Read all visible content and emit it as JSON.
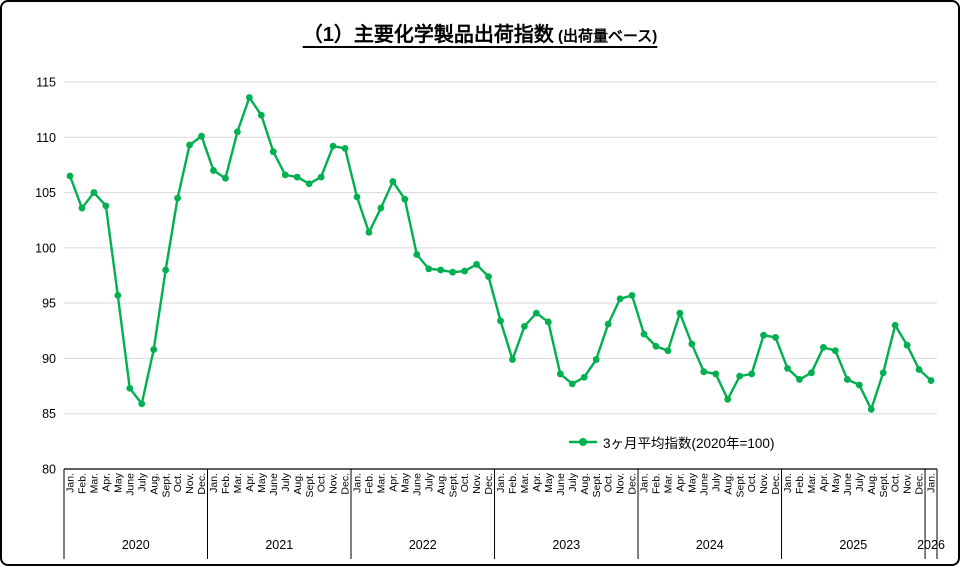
{
  "card": {
    "title_main": "（1）主要化学製品出荷指数",
    "title_sub": " (出荷量ベース)"
  },
  "chart_data": {
    "type": "line",
    "title": "（1）主要化学製品出荷指数 (出荷量ベース)",
    "legend": "3ヶ月平均指数(2020年=100)",
    "ylim": [
      80,
      115
    ],
    "y_tick_step": 5,
    "y_tick_labels": [
      "80",
      "85",
      "90",
      "95",
      "100",
      "105",
      "110",
      "115"
    ],
    "grid": "on",
    "legend_position": "inside-bottom-center",
    "month_labels": [
      "Jan.",
      "Feb.",
      "Mar.",
      "Apr.",
      "May",
      "June",
      "July",
      "Aug.",
      "Sept.",
      "Oct.",
      "Nov.",
      "Dec."
    ],
    "year_groups": [
      {
        "year": "2020",
        "count": 12
      },
      {
        "year": "2021",
        "count": 12
      },
      {
        "year": "2022",
        "count": 12
      },
      {
        "year": "2023",
        "count": 12
      },
      {
        "year": "2024",
        "count": 12
      },
      {
        "year": "2025",
        "count": 12
      },
      {
        "year": "2026",
        "count": 1
      }
    ],
    "series": [
      {
        "name": "3ヶ月平均指数(2020年=100)",
        "color": "#00B050",
        "values": [
          106.5,
          103.6,
          105.0,
          103.8,
          95.7,
          87.3,
          85.9,
          90.8,
          98.0,
          104.5,
          109.3,
          110.1,
          107.0,
          106.3,
          110.5,
          113.6,
          112.0,
          108.7,
          106.6,
          106.4,
          105.8,
          106.4,
          109.2,
          109.0,
          104.6,
          101.4,
          103.6,
          106.0,
          104.4,
          99.4,
          98.1,
          98.0,
          97.8,
          97.9,
          98.5,
          97.4,
          93.4,
          89.9,
          92.9,
          94.1,
          93.3,
          88.6,
          87.7,
          88.3,
          89.9,
          93.1,
          95.4,
          95.7,
          92.2,
          91.1,
          90.7,
          94.1,
          91.3,
          88.8,
          88.6,
          86.3,
          88.4,
          88.6,
          92.1,
          91.9,
          89.1,
          88.1,
          88.7,
          91.0,
          90.7,
          88.1,
          87.6,
          85.4,
          88.7,
          93.0,
          91.2,
          89.0,
          88.0
        ]
      }
    ],
    "colors": {
      "series": "#00B050",
      "grid": "#d9d9d9",
      "axis": "#000000",
      "text": "#000000"
    }
  }
}
